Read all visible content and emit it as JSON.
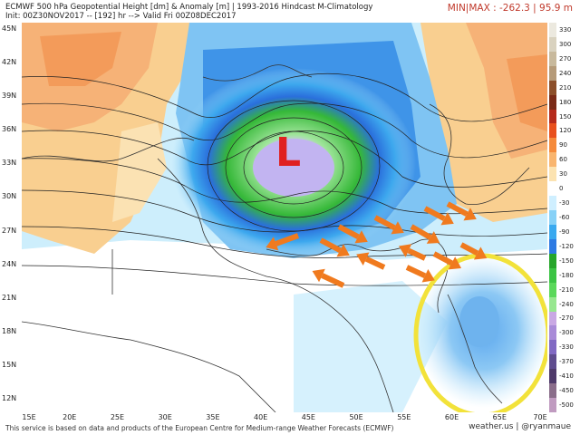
{
  "header": {
    "title_line1": "ECMWF 500 hPa Geopotential Height [dm] & Anomaly [m] | 1993-2016 Hindcast M-Climatology",
    "title_line2": "Init: 00Z30NOV2017 -- [192] hr --> Valid Fri 00Z08DEC2017",
    "minmax_label": "MIN|MAX : -262.3 | 95.9 m"
  },
  "map": {
    "low_label": "L",
    "lat_labels": [
      "45N",
      "42N",
      "39N",
      "36N",
      "33N",
      "30N",
      "27N",
      "24N",
      "21N",
      "18N",
      "15N",
      "12N"
    ],
    "lon_labels": [
      "15E",
      "20E",
      "25E",
      "30E",
      "35E",
      "40E",
      "45E",
      "50E",
      "55E",
      "60E",
      "65E",
      "70E"
    ],
    "colors": {
      "ocean_pos": "#ffffff",
      "warm": "#f7c98a",
      "cool": "#9fd3f4",
      "low_core": "#b09fe6",
      "low_green": "#3fbf3f",
      "arrow": "#f07a1e",
      "circle": "#f5e63a"
    }
  },
  "colorbar": {
    "labels": [
      "330",
      "300",
      "270",
      "240",
      "210",
      "180",
      "150",
      "120",
      "90",
      "60",
      "30",
      "0",
      "-30",
      "-60",
      "-90",
      "-120",
      "-150",
      "-180",
      "-210",
      "-240",
      "-270",
      "-300",
      "-330",
      "-370",
      "-410",
      "-450",
      "-500"
    ],
    "colors": [
      "#ece9df",
      "#d9d2bf",
      "#c8b99c",
      "#b59a78",
      "#8c4f2a",
      "#7a2b17",
      "#b52a1c",
      "#e8501d",
      "#f58a3a",
      "#f9b56e",
      "#fce3b1",
      "#ffffff",
      "#cfefff",
      "#87d1f7",
      "#3aa9ef",
      "#2e7ae3",
      "#26a52a",
      "#3bc444",
      "#5ad85a",
      "#97e78f",
      "#c9a8e4",
      "#a98bd8",
      "#8169c3",
      "#5f4c8e",
      "#4f3a6a",
      "#8a6d8a",
      "#c09bc0"
    ]
  },
  "footer": {
    "disclaimer": "This service is based on data and products of the European Centre for Medium-range Weather Forecasts (ECMWF)",
    "credit": "weather.us | @ryanmaue"
  }
}
